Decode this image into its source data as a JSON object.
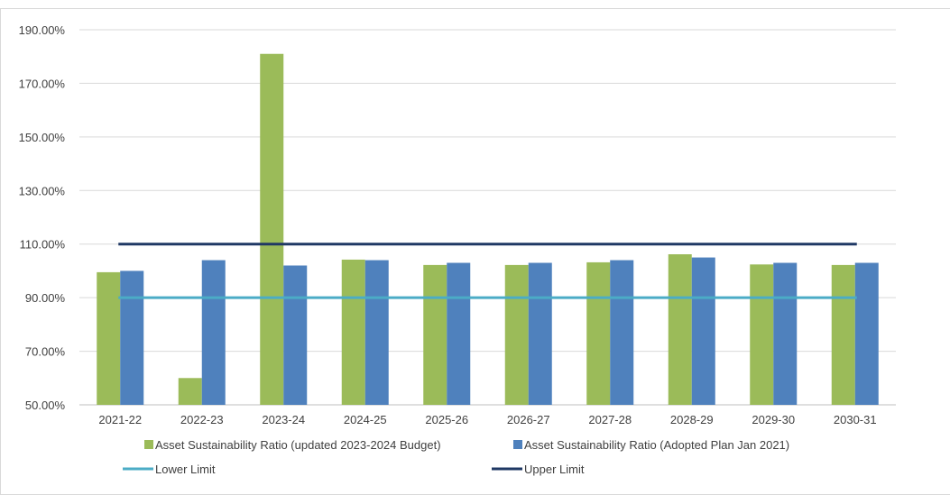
{
  "chart_data": {
    "type": "bar",
    "categories": [
      "2021-22",
      "2022-23",
      "2023-24",
      "2024-25",
      "2025-26",
      "2026-27",
      "2027-28",
      "2028-29",
      "2029-30",
      "2030-31"
    ],
    "series": [
      {
        "name": "Asset Sustainability Ratio (updated 2023-2024 Budget)",
        "color": "#9bbb59",
        "values": [
          99.5,
          60.0,
          181.0,
          104.2,
          102.2,
          102.2,
          103.2,
          106.2,
          102.4,
          102.2
        ]
      },
      {
        "name": "Asset Sustainability Ratio (Adopted Plan Jan 2021)",
        "color": "#4f81bd",
        "values": [
          100.0,
          104.0,
          102.0,
          104.0,
          103.0,
          103.0,
          104.0,
          105.0,
          103.0,
          103.0
        ]
      }
    ],
    "lines": [
      {
        "name": "Lower Limit",
        "value": 90,
        "color": "#4bacc6"
      },
      {
        "name": "Upper Limit",
        "value": 110,
        "color": "#1f3864"
      }
    ],
    "yticks": [
      "50.00%",
      "70.00%",
      "90.00%",
      "110.00%",
      "130.00%",
      "150.00%",
      "170.00%",
      "190.00%"
    ],
    "ylim": [
      50,
      190
    ],
    "xlabel": "",
    "ylabel": "",
    "title": "",
    "grid": true,
    "legend_position": "bottom"
  }
}
